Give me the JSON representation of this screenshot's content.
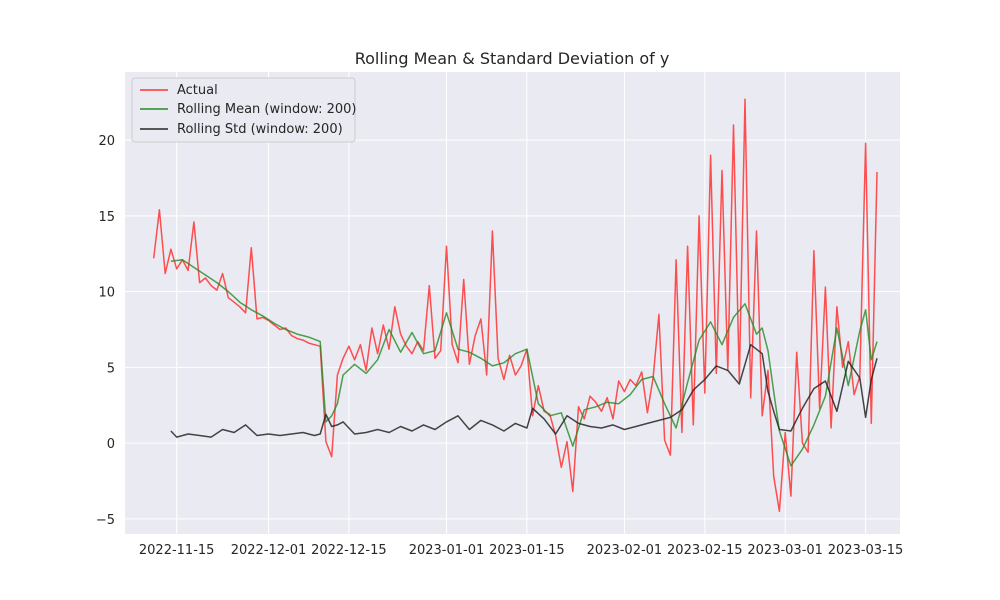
{
  "chart_data": {
    "type": "line",
    "title": "Rolling Mean & Standard Deviation of y",
    "xlabel": "",
    "ylabel": "",
    "x_range": [
      "2022-11-06",
      "2023-03-21"
    ],
    "ylim": [
      -6,
      24.5
    ],
    "x_ticks": [
      "2022-11-15",
      "2022-12-01",
      "2022-12-15",
      "2023-01-01",
      "2023-01-15",
      "2023-02-01",
      "2023-02-15",
      "2023-03-01",
      "2023-03-15"
    ],
    "y_ticks": [
      -5,
      0,
      5,
      10,
      15,
      20
    ],
    "y_tick_labels": [
      "−5",
      "0",
      "5",
      "10",
      "15",
      "20"
    ],
    "grid": true,
    "legend_position": "top-left",
    "series": [
      {
        "name": "Actual",
        "color": "#ff3333",
        "x": [
          "2022-11-11",
          "2022-11-12",
          "2022-11-13",
          "2022-11-14",
          "2022-11-15",
          "2022-11-16",
          "2022-11-17",
          "2022-11-18",
          "2022-11-19",
          "2022-11-20",
          "2022-11-21",
          "2022-11-22",
          "2022-11-23",
          "2022-11-24",
          "2022-11-25",
          "2022-11-26",
          "2022-11-27",
          "2022-11-28",
          "2022-11-29",
          "2022-11-30",
          "2022-12-01",
          "2022-12-02",
          "2022-12-03",
          "2022-12-04",
          "2022-12-05",
          "2022-12-06",
          "2022-12-07",
          "2022-12-08",
          "2022-12-09",
          "2022-12-10",
          "2022-12-11",
          "2022-12-12",
          "2022-12-13",
          "2022-12-14",
          "2022-12-15",
          "2022-12-16",
          "2022-12-17",
          "2022-12-18",
          "2022-12-19",
          "2022-12-20",
          "2022-12-21",
          "2022-12-22",
          "2022-12-23",
          "2022-12-24",
          "2022-12-25",
          "2022-12-26",
          "2022-12-27",
          "2022-12-28",
          "2022-12-29",
          "2022-12-30",
          "2022-12-31",
          "2023-01-01",
          "2023-01-02",
          "2023-01-03",
          "2023-01-04",
          "2023-01-05",
          "2023-01-06",
          "2023-01-07",
          "2023-01-08",
          "2023-01-09",
          "2023-01-10",
          "2023-01-11",
          "2023-01-12",
          "2023-01-13",
          "2023-01-14",
          "2023-01-15",
          "2023-01-16",
          "2023-01-17",
          "2023-01-18",
          "2023-01-19",
          "2023-01-20",
          "2023-01-21",
          "2023-01-22",
          "2023-01-23",
          "2023-01-24",
          "2023-01-25",
          "2023-01-26",
          "2023-01-27",
          "2023-01-28",
          "2023-01-29",
          "2023-01-30",
          "2023-01-31",
          "2023-02-01",
          "2023-02-02",
          "2023-02-03",
          "2023-02-04",
          "2023-02-05",
          "2023-02-06",
          "2023-02-07",
          "2023-02-08",
          "2023-02-09",
          "2023-02-10",
          "2023-02-11",
          "2023-02-12",
          "2023-02-13",
          "2023-02-14",
          "2023-02-15",
          "2023-02-16",
          "2023-02-17",
          "2023-02-18",
          "2023-02-19",
          "2023-02-20",
          "2023-02-21",
          "2023-02-22",
          "2023-02-23",
          "2023-02-24",
          "2023-02-25",
          "2023-02-26",
          "2023-02-27",
          "2023-02-28",
          "2023-03-01",
          "2023-03-02",
          "2023-03-03",
          "2023-03-04",
          "2023-03-05",
          "2023-03-06",
          "2023-03-07",
          "2023-03-08",
          "2023-03-09",
          "2023-03-10",
          "2023-03-11",
          "2023-03-12",
          "2023-03-13",
          "2023-03-14",
          "2023-03-15",
          "2023-03-16",
          "2023-03-17"
        ],
        "values": [
          12.2,
          15.4,
          11.2,
          12.8,
          11.5,
          12.1,
          11.4,
          14.6,
          10.6,
          10.9,
          10.4,
          10.1,
          11.2,
          9.6,
          9.3,
          9.0,
          8.6,
          12.9,
          8.2,
          8.3,
          8.1,
          7.8,
          7.5,
          7.6,
          7.1,
          6.9,
          6.8,
          6.6,
          6.5,
          6.4,
          0.1,
          -0.9,
          4.5,
          5.6,
          6.4,
          5.5,
          6.5,
          4.8,
          7.6,
          5.9,
          7.8,
          6.2,
          9.0,
          7.2,
          6.4,
          5.9,
          6.7,
          6.1,
          10.4,
          5.6,
          6.1,
          13.0,
          6.5,
          5.3,
          10.8,
          5.2,
          7.1,
          8.2,
          4.5,
          14.0,
          5.6,
          4.2,
          5.8,
          4.5,
          5.1,
          6.2,
          1.8,
          3.8,
          2.1,
          1.9,
          0.5,
          -1.6,
          0.1,
          -3.2,
          2.4,
          1.6,
          3.1,
          2.7,
          2.1,
          3.0,
          1.6,
          4.1,
          3.4,
          4.2,
          3.8,
          4.7,
          2.0,
          4.3,
          8.5,
          0.2,
          -0.8,
          12.1,
          0.7,
          13.0,
          1.2,
          15.0,
          3.3,
          19.0,
          4.6,
          18.0,
          4.8,
          21.0,
          4.1,
          22.7,
          3.0,
          14.0,
          1.8,
          4.8,
          -2.2,
          -4.5,
          0.7,
          -3.5,
          6.0,
          0.0,
          -0.6,
          12.7,
          2.3,
          10.3,
          1.0,
          9.0,
          5.0,
          6.7,
          3.2,
          4.4,
          19.8,
          1.3,
          17.9
        ]
      },
      {
        "name": "Rolling Mean (window: 200)",
        "color": "#228b22",
        "x": [
          "2022-11-14",
          "2022-11-16",
          "2022-11-18",
          "2022-11-20",
          "2022-11-22",
          "2022-11-24",
          "2022-11-26",
          "2022-11-28",
          "2022-11-30",
          "2022-12-02",
          "2022-12-04",
          "2022-12-06",
          "2022-12-08",
          "2022-12-10",
          "2022-12-11",
          "2022-12-12",
          "2022-12-13",
          "2022-12-14",
          "2022-12-16",
          "2022-12-18",
          "2022-12-20",
          "2022-12-22",
          "2022-12-24",
          "2022-12-26",
          "2022-12-28",
          "2022-12-30",
          "2023-01-01",
          "2023-01-03",
          "2023-01-05",
          "2023-01-07",
          "2023-01-09",
          "2023-01-11",
          "2023-01-13",
          "2023-01-15",
          "2023-01-17",
          "2023-01-19",
          "2023-01-21",
          "2023-01-23",
          "2023-01-25",
          "2023-01-27",
          "2023-01-29",
          "2023-01-31",
          "2023-02-02",
          "2023-02-04",
          "2023-02-06",
          "2023-02-08",
          "2023-02-10",
          "2023-02-12",
          "2023-02-14",
          "2023-02-16",
          "2023-02-18",
          "2023-02-20",
          "2023-02-22",
          "2023-02-24",
          "2023-02-25",
          "2023-02-26",
          "2023-02-27",
          "2023-02-28",
          "2023-03-02",
          "2023-03-04",
          "2023-03-06",
          "2023-03-08",
          "2023-03-10",
          "2023-03-12",
          "2023-03-14",
          "2023-03-15",
          "2023-03-16",
          "2023-03-17"
        ],
        "values": [
          12.0,
          12.1,
          11.6,
          11.1,
          10.6,
          10.0,
          9.3,
          8.8,
          8.4,
          7.9,
          7.5,
          7.2,
          7.0,
          6.7,
          1.4,
          1.8,
          2.6,
          4.5,
          5.2,
          4.6,
          5.5,
          7.5,
          6.0,
          7.3,
          5.9,
          6.1,
          8.6,
          6.2,
          6.0,
          5.6,
          5.1,
          5.3,
          5.9,
          6.2,
          2.6,
          1.8,
          2.0,
          -0.2,
          2.2,
          2.4,
          2.7,
          2.6,
          3.2,
          4.2,
          4.4,
          2.6,
          1.0,
          4.0,
          6.8,
          8.0,
          6.5,
          8.3,
          9.2,
          7.2,
          7.6,
          6.1,
          3.4,
          0.8,
          -1.5,
          -0.4,
          1.2,
          3.1,
          7.6,
          3.8,
          7.4,
          8.8,
          5.5,
          6.7
        ]
      },
      {
        "name": "Rolling Std (window: 200)",
        "color": "#262626",
        "x": [
          "2022-11-14",
          "2022-11-15",
          "2022-11-17",
          "2022-11-19",
          "2022-11-21",
          "2022-11-23",
          "2022-11-25",
          "2022-11-27",
          "2022-11-29",
          "2022-12-01",
          "2022-12-03",
          "2022-12-05",
          "2022-12-07",
          "2022-12-09",
          "2022-12-10",
          "2022-12-11",
          "2022-12-12",
          "2022-12-13",
          "2022-12-14",
          "2022-12-16",
          "2022-12-18",
          "2022-12-20",
          "2022-12-22",
          "2022-12-24",
          "2022-12-26",
          "2022-12-28",
          "2022-12-30",
          "2023-01-01",
          "2023-01-03",
          "2023-01-05",
          "2023-01-07",
          "2023-01-09",
          "2023-01-11",
          "2023-01-13",
          "2023-01-15",
          "2023-01-16",
          "2023-01-18",
          "2023-01-20",
          "2023-01-22",
          "2023-01-24",
          "2023-01-26",
          "2023-01-28",
          "2023-01-30",
          "2023-02-01",
          "2023-02-03",
          "2023-02-05",
          "2023-02-07",
          "2023-02-09",
          "2023-02-11",
          "2023-02-13",
          "2023-02-15",
          "2023-02-17",
          "2023-02-19",
          "2023-02-21",
          "2023-02-23",
          "2023-02-25",
          "2023-02-26",
          "2023-02-27",
          "2023-02-28",
          "2023-03-02",
          "2023-03-04",
          "2023-03-06",
          "2023-03-08",
          "2023-03-10",
          "2023-03-12",
          "2023-03-14",
          "2023-03-15",
          "2023-03-16",
          "2023-03-17"
        ],
        "values": [
          0.8,
          0.4,
          0.6,
          0.5,
          0.4,
          0.9,
          0.7,
          1.2,
          0.5,
          0.6,
          0.5,
          0.6,
          0.7,
          0.5,
          0.6,
          1.9,
          1.1,
          1.2,
          1.4,
          0.6,
          0.7,
          0.9,
          0.7,
          1.1,
          0.8,
          1.2,
          0.9,
          1.4,
          1.8,
          0.9,
          1.5,
          1.2,
          0.8,
          1.3,
          1.0,
          2.3,
          1.6,
          0.6,
          1.8,
          1.3,
          1.1,
          1.0,
          1.2,
          0.9,
          1.1,
          1.3,
          1.5,
          1.7,
          2.2,
          3.5,
          4.2,
          5.1,
          4.8,
          3.9,
          6.5,
          5.9,
          3.4,
          2.1,
          0.9,
          0.8,
          2.3,
          3.6,
          4.1,
          2.1,
          5.4,
          4.3,
          1.7,
          4.2,
          5.6
        ]
      }
    ]
  }
}
